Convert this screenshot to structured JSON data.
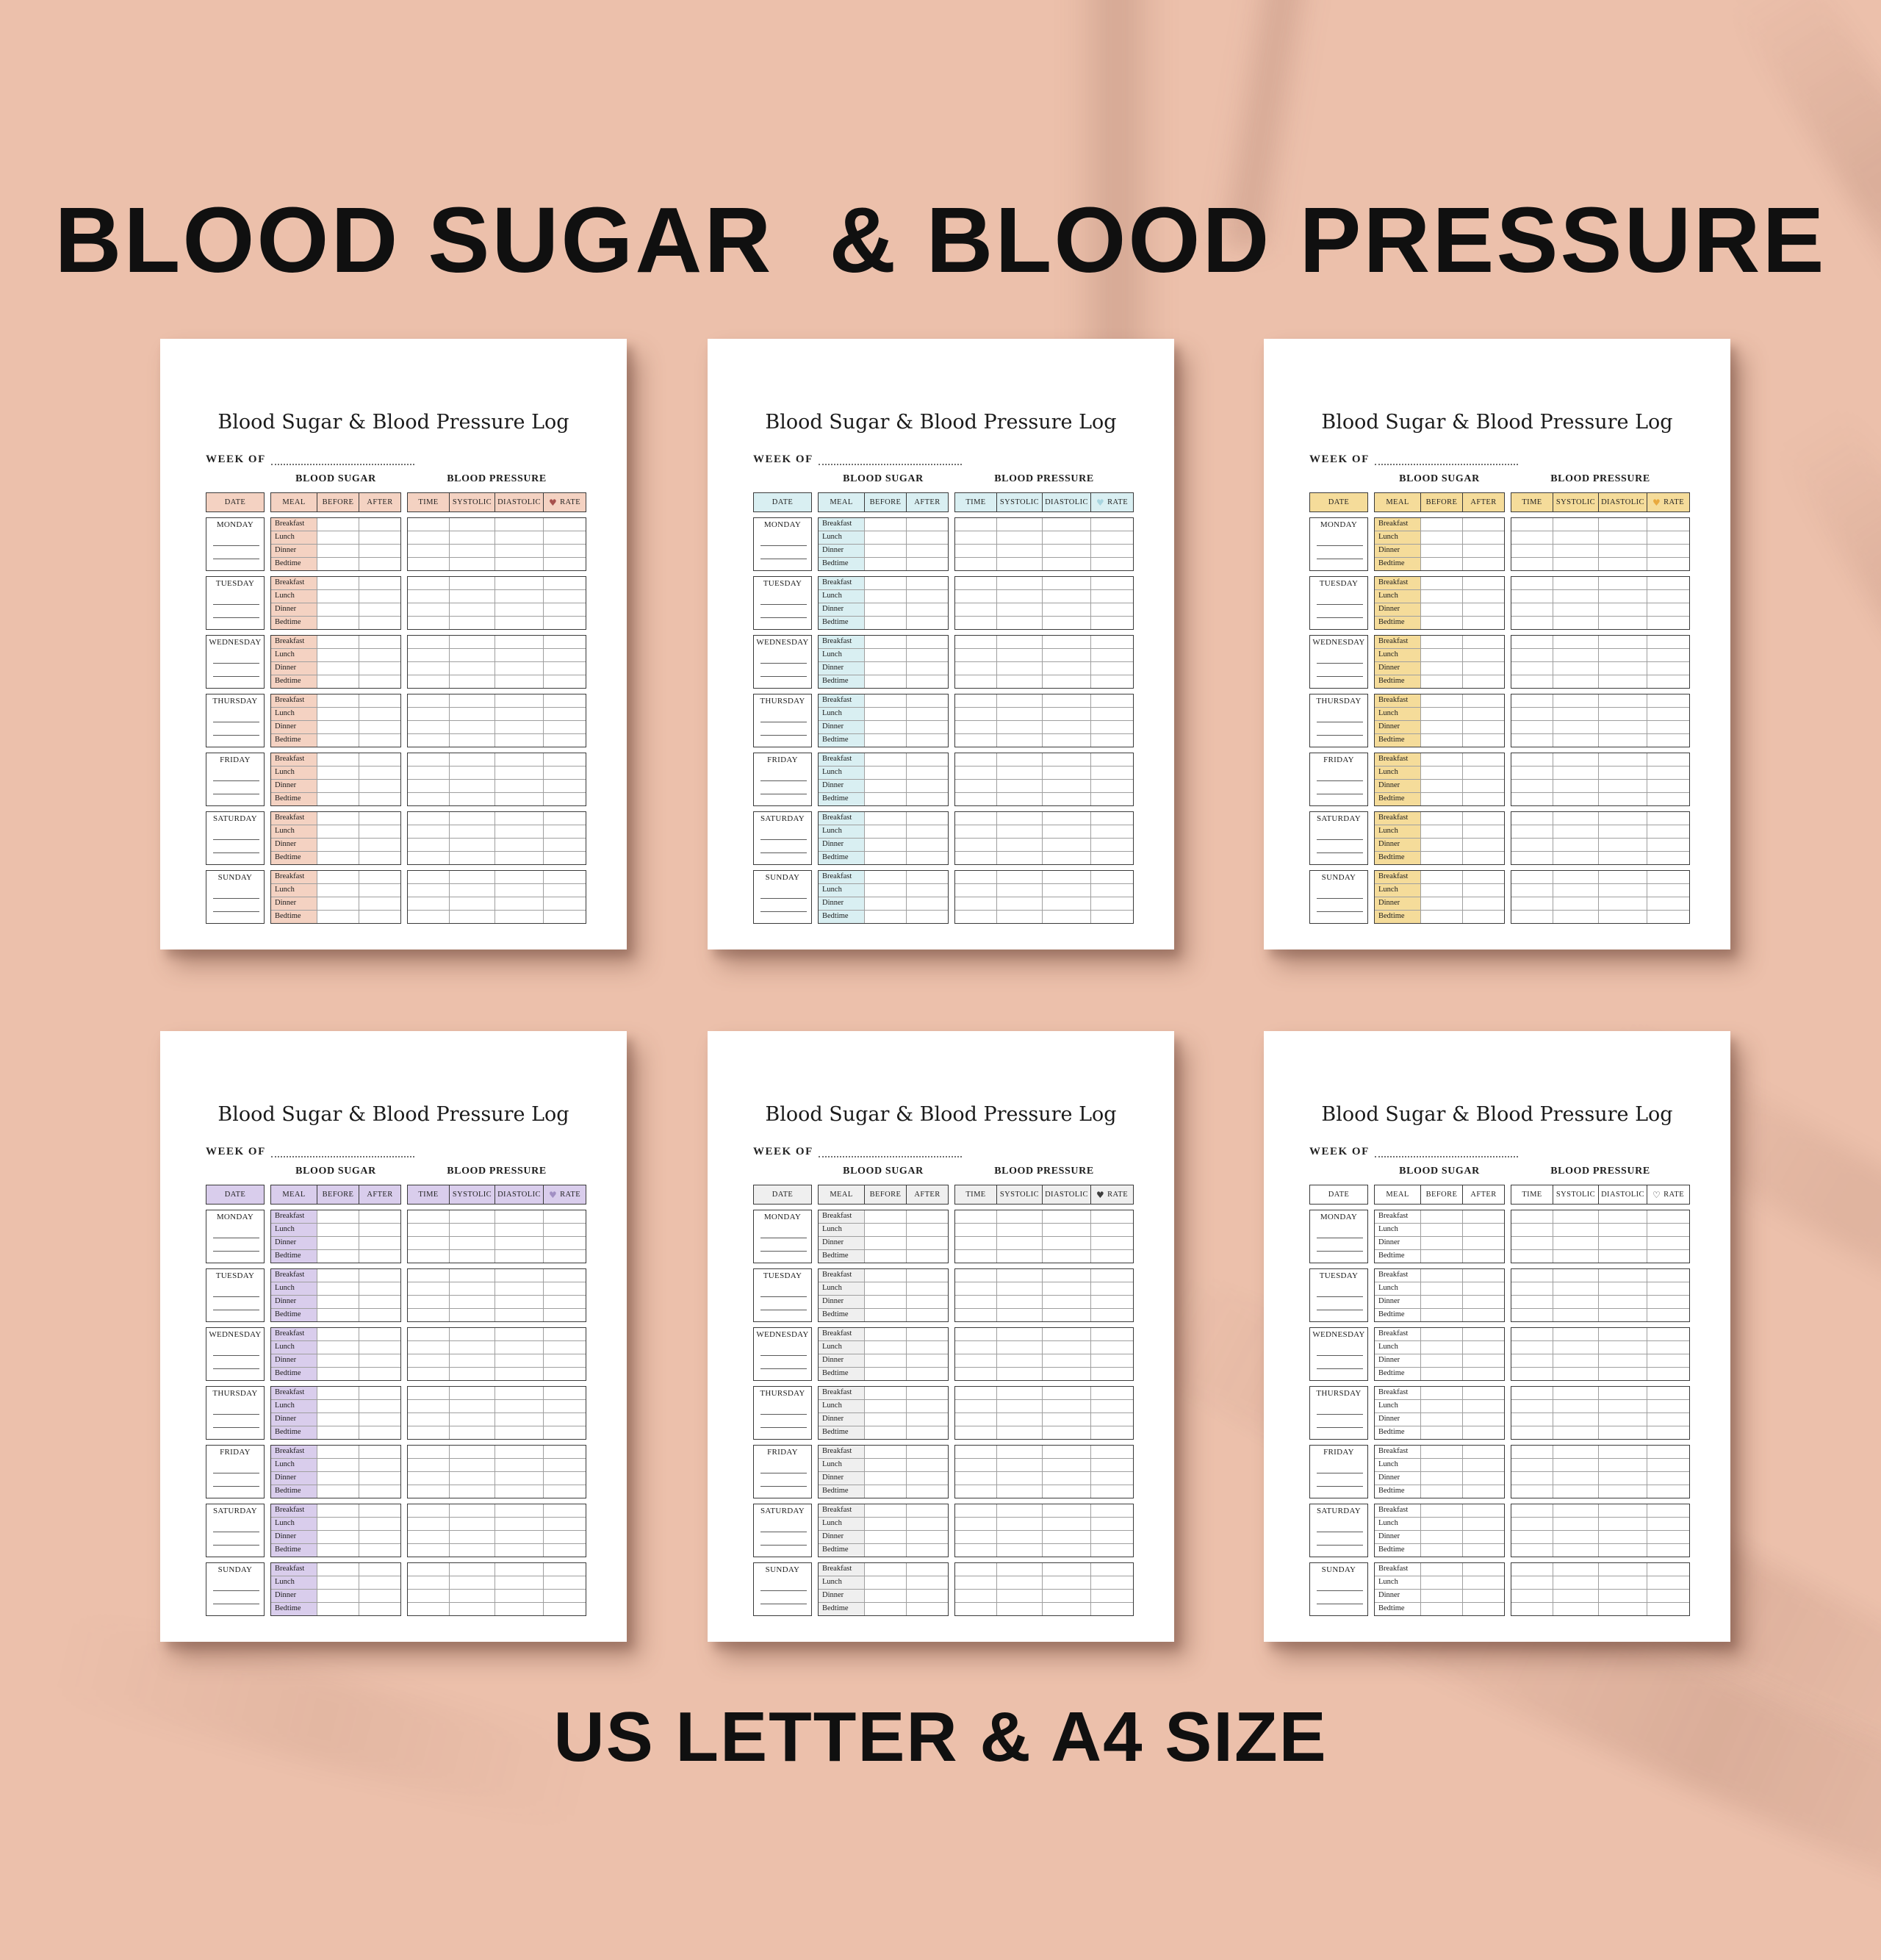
{
  "banner": {
    "title": "BLOOD SUGAR  & BLOOD PRESSURE",
    "footer": "US LETTER & A4 SIZE"
  },
  "sheet": {
    "title": "Blood Sugar & Blood Pressure Log",
    "week_of_label": "WEEK OF",
    "sections": {
      "blood_sugar": "BLOOD SUGAR",
      "blood_pressure": "BLOOD PRESSURE"
    },
    "columns": {
      "date": "DATE",
      "meal": "MEAL",
      "before": "BEFORE",
      "after": "AFTER",
      "time": "TIME",
      "systolic": "SYSTOLIC",
      "diastolic": "DIASTOLIC",
      "rate": "RATE"
    },
    "days": [
      "MONDAY",
      "TUESDAY",
      "WEDNESDAY",
      "THURSDAY",
      "FRIDAY",
      "SATURDAY",
      "SUNDAY"
    ],
    "meals": [
      "Breakfast",
      "Lunch",
      "Dinner",
      "Bedtime"
    ]
  },
  "variants": [
    {
      "name": "pink",
      "accent": "#f4d2c2",
      "heart": "#a6504d",
      "heart_glyph": "♥"
    },
    {
      "name": "blue",
      "accent": "#d9eff2",
      "heart": "#a9d5df",
      "heart_glyph": "♥"
    },
    {
      "name": "yellow",
      "accent": "#f5dc9a",
      "heart": "#e8a93f",
      "heart_glyph": "♥"
    },
    {
      "name": "purple",
      "accent": "#d9cdec",
      "heart": "#a18fc3",
      "heart_glyph": "♥"
    },
    {
      "name": "gray",
      "accent": "#efefef",
      "heart": "#3d3d3d",
      "heart_glyph": "♥"
    },
    {
      "name": "white",
      "accent": "#ffffff",
      "heart": "#2b2b2b",
      "heart_glyph": "♡"
    }
  ],
  "colors": {
    "background": "#ecc0ab",
    "page": "#ffffff",
    "border_dark": "#3a3a3a",
    "border_light": "#9f9f9f",
    "text": "#1c1c1c"
  }
}
